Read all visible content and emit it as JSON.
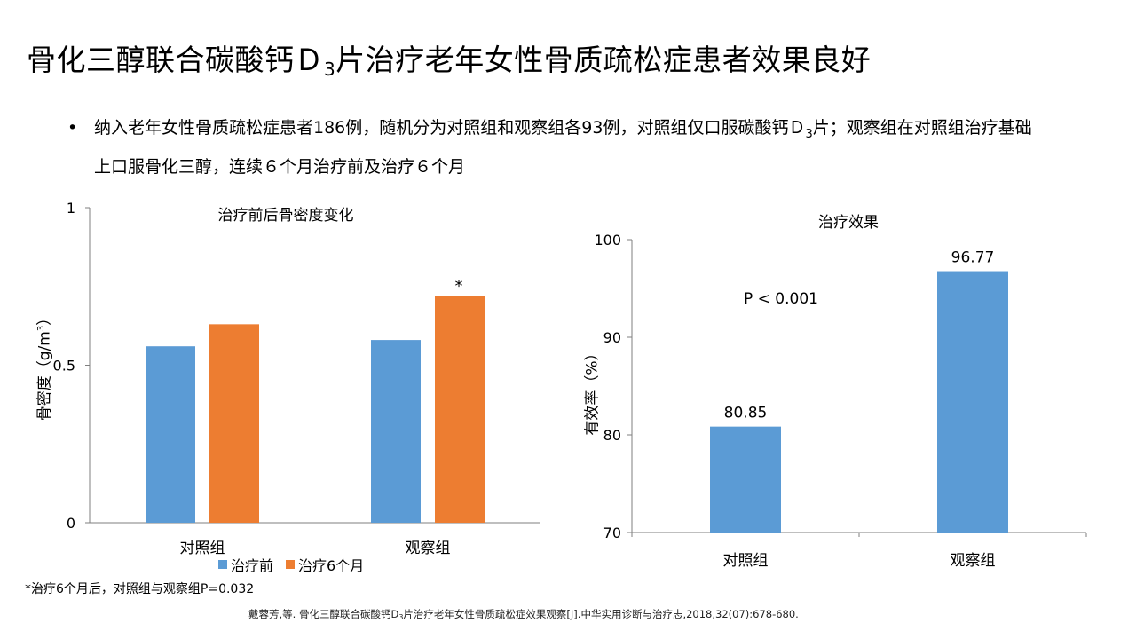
{
  "slide": {
    "title_main": "骨化三醇联合碳酸钙Ｄ",
    "title_sub": "3",
    "title_tail": "片治疗老年女性骨质疏松症患者效果良好",
    "bullet_part1": "纳入老年女性骨质疏松症患者186例，随机分为对照组和观察组各93例，对照组仅口服碳酸钙Ｄ",
    "bullet_sub": "3",
    "bullet_part2": "片；观察组在对照组治疗基础上口服骨化三醇，连续６个月治疗前及治疗６个月",
    "bullet_dot": "•",
    "note": "*治疗6个月后，对照组与观察组P=0.032",
    "ref_part1": "戴蓉芳,等. 骨化三醇联合碳酸钙D",
    "ref_sub": "3",
    "ref_part2": "片治疗老年女性骨质疏松症效果观察[J].中华实用诊断与治疗志,2018,32(07):678-680."
  },
  "chart_data": [
    {
      "type": "bar",
      "title": "治疗前后骨密度变化",
      "ylabel_main": "骨密度（g/m",
      "ylabel_sup": "3",
      "ylabel_tail": "）",
      "categories": [
        "对照组",
        "观察组"
      ],
      "series": [
        {
          "name": "治疗前",
          "color": "#5b9bd5",
          "values": [
            0.56,
            0.58
          ]
        },
        {
          "name": "治疗6个月",
          "color": "#ed7d31",
          "values": [
            0.63,
            0.72
          ]
        }
      ],
      "ylim": [
        0,
        1
      ],
      "yticks": [
        "0",
        "0.5",
        "1"
      ],
      "annotation": "*",
      "legend": "bottom"
    },
    {
      "type": "bar",
      "title": "治疗效果",
      "ylabel": "有效率（%）",
      "categories": [
        "对照组",
        "观察组"
      ],
      "series": [
        {
          "color": "#5b9bd5",
          "values": [
            80.85,
            96.77
          ]
        }
      ],
      "data_labels": [
        "80.85",
        "96.77"
      ],
      "ylim": [
        70,
        100
      ],
      "yticks": [
        "70",
        "80",
        "90",
        "100"
      ],
      "annotation": "P < 0.001"
    }
  ]
}
